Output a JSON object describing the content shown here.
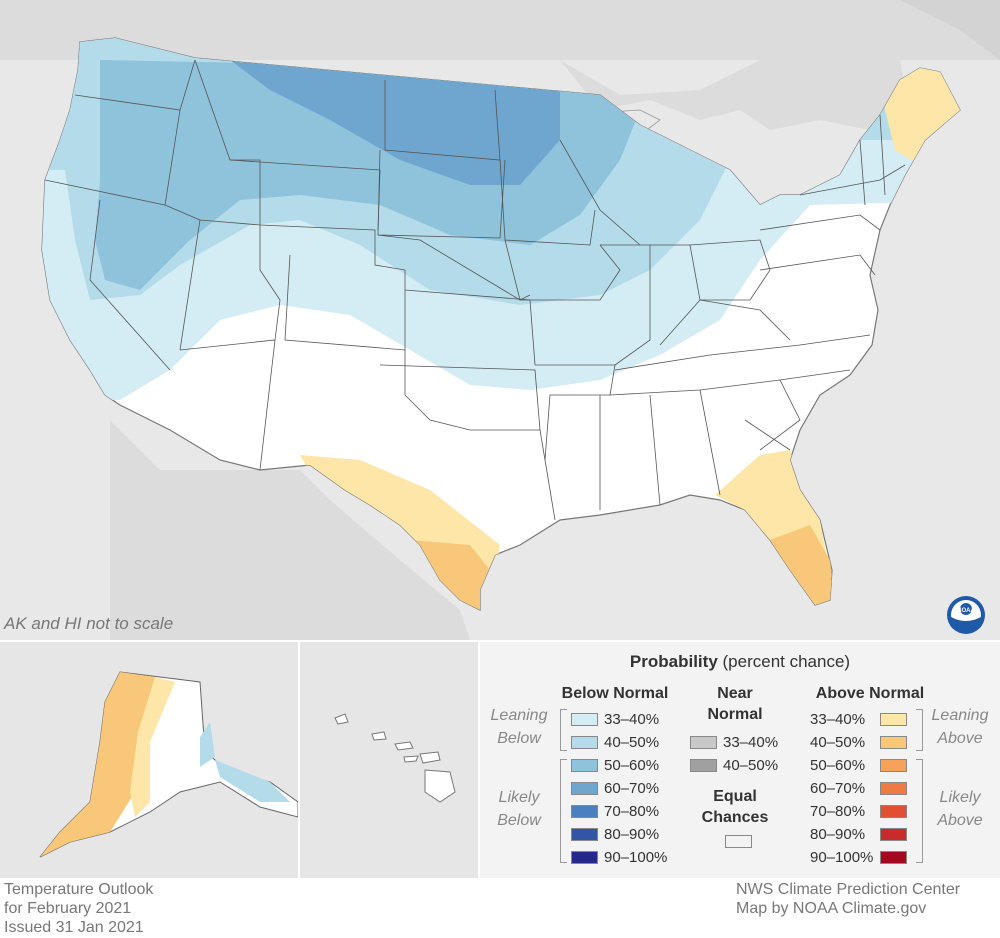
{
  "map": {
    "scale_note": "AK and HI not to scale",
    "logo_text": "NOAA",
    "colors": {
      "background_land": "#e6e6e6",
      "border": "#555555",
      "equal_chances": "#ffffff",
      "below_33_40": "#d4ecf4",
      "below_40_50": "#b4dbe9",
      "below_50_60": "#8fc3dc",
      "below_60_70": "#6ea6cf",
      "above_33_40": "#fde6a8",
      "above_40_50": "#f9c77a"
    }
  },
  "legend": {
    "title_bold": "Probability",
    "title_rest": " (percent chance)",
    "below": {
      "header": "Below Normal",
      "leaning": "Leaning Below",
      "likely": "Likely Below",
      "rows": [
        {
          "label": "33–40%",
          "color": "#d4ecf4"
        },
        {
          "label": "40–50%",
          "color": "#b4dbe9"
        },
        {
          "label": "50–60%",
          "color": "#8fc3dc"
        },
        {
          "label": "60–70%",
          "color": "#6ea6cf"
        },
        {
          "label": "70–80%",
          "color": "#4a7fc0"
        },
        {
          "label": "80–90%",
          "color": "#3355a6"
        },
        {
          "label": "90–100%",
          "color": "#24288c"
        }
      ]
    },
    "near": {
      "header": "Near Normal",
      "rows": [
        {
          "label": "33–40%",
          "color": "#c8c8c8"
        },
        {
          "label": "40–50%",
          "color": "#a0a0a0"
        }
      ],
      "equal_header": "Equal Chances",
      "equal_color": "#ffffff"
    },
    "above": {
      "header": "Above Normal",
      "leaning": "Leaning Above",
      "likely": "Likely Above",
      "rows": [
        {
          "label": "33–40%",
          "color": "#fde6a8"
        },
        {
          "label": "40–50%",
          "color": "#f9c77a"
        },
        {
          "label": "50–60%",
          "color": "#f6a25b"
        },
        {
          "label": "60–70%",
          "color": "#f07a44"
        },
        {
          "label": "70–80%",
          "color": "#e24f33"
        },
        {
          "label": "80–90%",
          "color": "#c92a2a"
        },
        {
          "label": "90–100%",
          "color": "#a3081f"
        }
      ]
    }
  },
  "footer": {
    "left": [
      "Temperature Outlook",
      "for February 2021",
      "Issued 31 Jan 2021"
    ],
    "right": [
      "NWS Climate Prediction Center",
      "Map by NOAA Climate.gov"
    ]
  }
}
